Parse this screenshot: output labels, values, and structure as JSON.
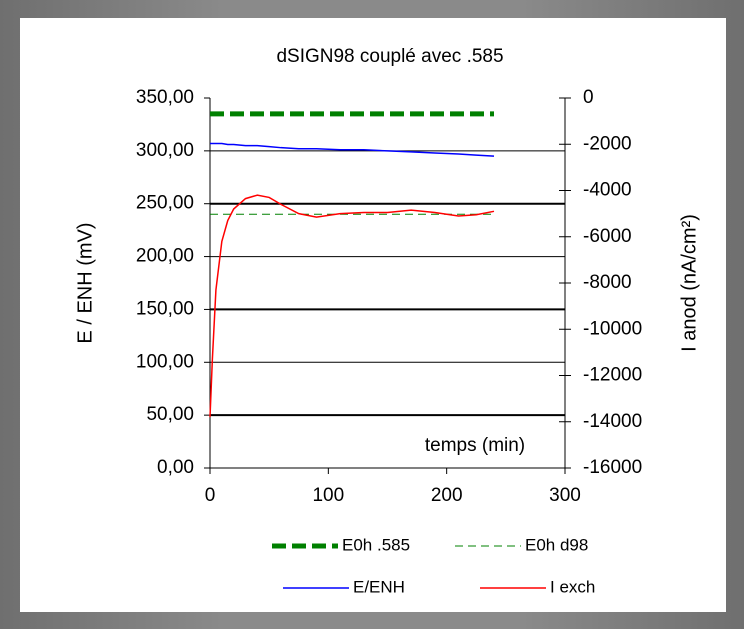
{
  "chart_data": {
    "type": "line",
    "title": "dSIGN98 couplé avec .585",
    "ylabel": "E / ENH (mV)",
    "y2label": "I anod (nA/cm²)",
    "annotation": "temps (min)",
    "x": [
      0,
      2,
      5,
      10,
      15,
      20,
      30,
      40,
      50,
      60,
      75,
      90,
      110,
      130,
      150,
      170,
      190,
      210,
      225,
      240
    ],
    "series": [
      {
        "name": "E0h .585",
        "color": "#008000",
        "values": [
          335,
          335,
          335,
          335,
          335,
          335,
          335,
          335,
          335,
          335,
          335,
          335,
          335,
          335,
          335,
          335,
          335,
          335,
          335,
          335
        ]
      },
      {
        "name": "E0h d98",
        "color": "#008000",
        "values": [
          240,
          240,
          240,
          240,
          240,
          240,
          240,
          240,
          240,
          240,
          240,
          240,
          240,
          240,
          240,
          240,
          240,
          240,
          240,
          240
        ]
      },
      {
        "name": "E/ENH",
        "color": "#0000ff",
        "values": [
          307,
          307,
          307,
          307,
          306,
          306,
          305,
          305,
          304,
          303,
          302,
          302,
          301,
          301,
          300,
          299,
          298,
          297,
          296,
          295
        ]
      },
      {
        "name": "I exch",
        "color": "#ff0000",
        "axis": "y2",
        "values": [
          -13800,
          -11300,
          -8300,
          -6200,
          -5300,
          -4800,
          -4350,
          -4200,
          -4300,
          -4600,
          -5000,
          -5150,
          -5000,
          -4950,
          -4950,
          -4850,
          -4950,
          -5100,
          -5050,
          -4900
        ]
      }
    ],
    "xlim": [
      0,
      300
    ],
    "xticks": [
      0,
      100,
      200,
      300
    ],
    "ylim": [
      0,
      350
    ],
    "yticks": [
      {
        "value": 0,
        "label": "0,00"
      },
      {
        "value": 50,
        "label": "50,00"
      },
      {
        "value": 100,
        "label": "100,00"
      },
      {
        "value": 150,
        "label": "150,00"
      },
      {
        "value": 200,
        "label": "200,00"
      },
      {
        "value": 250,
        "label": "250,00"
      },
      {
        "value": 300,
        "label": "300,00"
      },
      {
        "value": 350,
        "label": "350,00"
      }
    ],
    "y2lim": [
      -16000,
      0
    ],
    "y2ticks": [
      -16000,
      -14000,
      -12000,
      -10000,
      -8000,
      -6000,
      -4000,
      -2000,
      0
    ],
    "grid": true,
    "legend": "bottom"
  }
}
